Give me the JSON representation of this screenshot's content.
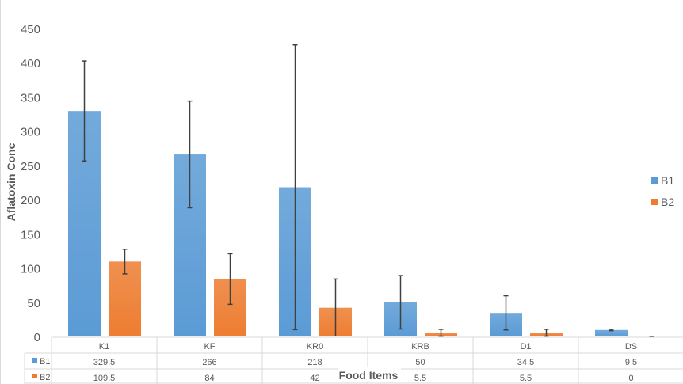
{
  "chart_data": {
    "type": "bar",
    "title": "",
    "xlabel": "Food Items",
    "ylabel": "Aflatoxin Conc",
    "ylim": [
      0,
      450
    ],
    "yticks": [
      0,
      50,
      100,
      150,
      200,
      250,
      300,
      350,
      400,
      450
    ],
    "categories": [
      "K1",
      "KF",
      "KR0",
      "KRB",
      "D1",
      "DS"
    ],
    "series": [
      {
        "name": "B1",
        "color": "#5b9bd5",
        "values": [
          329.5,
          266,
          218,
          50,
          34.5,
          9.5
        ],
        "errors": [
          73,
          78,
          208,
          39,
          25,
          1
        ]
      },
      {
        "name": "B2",
        "color": "#ed7d31",
        "values": [
          109.5,
          84,
          42,
          5.5,
          5.5,
          0
        ],
        "errors": [
          18,
          37,
          42,
          5,
          5,
          0
        ]
      }
    ],
    "data_table": true,
    "legend": "right",
    "grid": false
  }
}
